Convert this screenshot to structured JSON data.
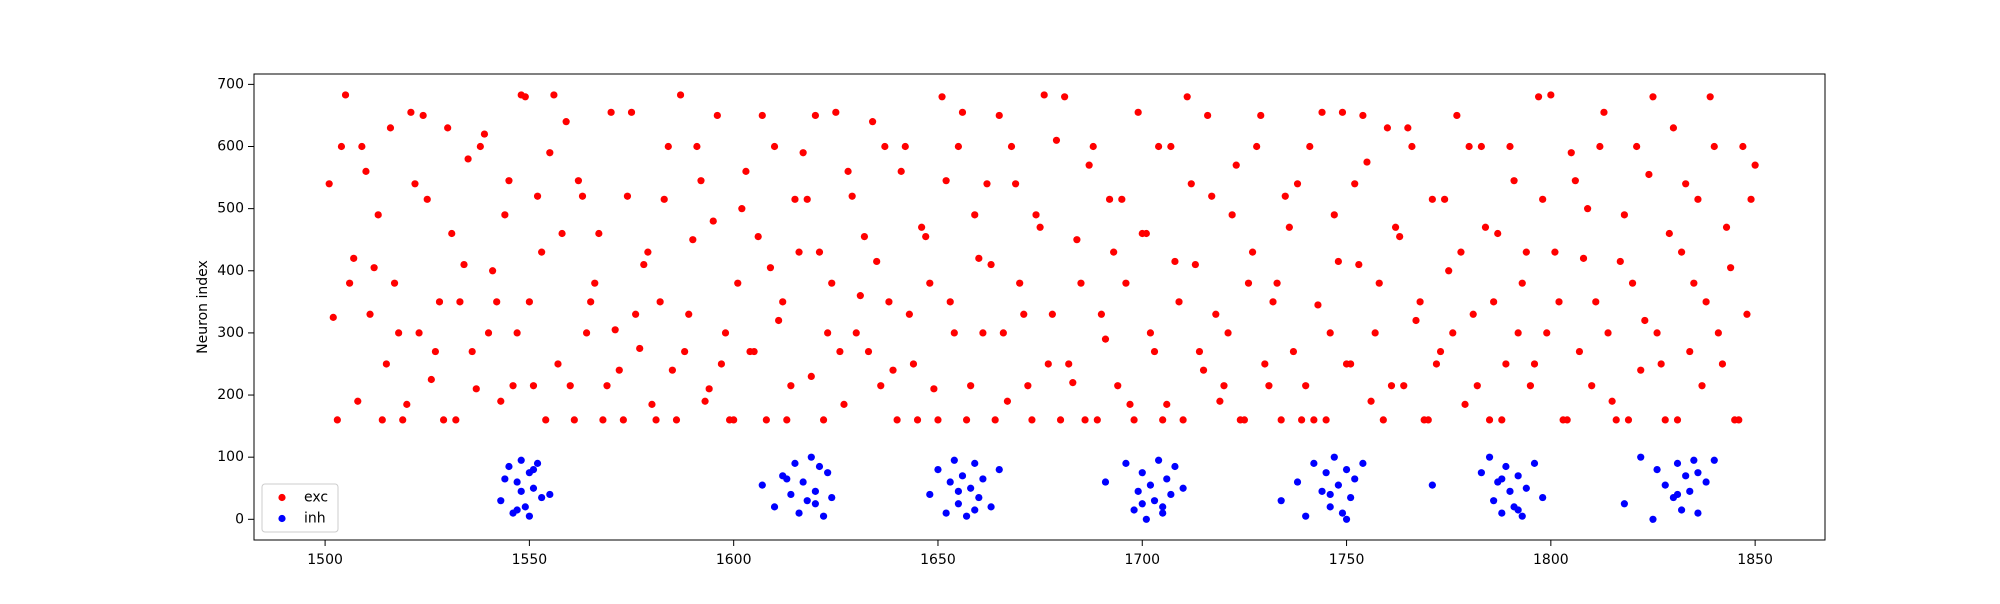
{
  "chart_data": {
    "type": "scatter",
    "ylabel": "Neuron index",
    "xlim": [
      1482.6,
      1867.1
    ],
    "ylim": [
      -33.3,
      716.7
    ],
    "xticks": [
      1500,
      1550,
      1600,
      1650,
      1700,
      1750,
      1800,
      1850
    ],
    "yticks": [
      0,
      100,
      200,
      300,
      400,
      500,
      600,
      700
    ],
    "grid": false,
    "legend_loc": "lower left",
    "series": [
      {
        "name": "exc",
        "color": "#ff0000",
        "x": [
          1501,
          1503,
          1505,
          1507,
          1509,
          1511,
          1513,
          1515,
          1517,
          1519,
          1521,
          1523,
          1525,
          1527,
          1529,
          1531,
          1533,
          1535,
          1537,
          1539,
          1541,
          1543,
          1545,
          1547,
          1549,
          1551,
          1553,
          1555,
          1557,
          1559,
          1561,
          1563,
          1565,
          1567,
          1569,
          1571,
          1573,
          1575,
          1577,
          1579,
          1581,
          1583,
          1585,
          1587,
          1589,
          1591,
          1593,
          1595,
          1597,
          1599,
          1601,
          1603,
          1605,
          1607,
          1609,
          1611,
          1613,
          1615,
          1617,
          1619,
          1621,
          1623,
          1625,
          1627,
          1629,
          1631,
          1633,
          1635,
          1637,
          1639,
          1641,
          1643,
          1645,
          1647,
          1649,
          1651,
          1653,
          1655,
          1657,
          1659,
          1661,
          1663,
          1665,
          1667,
          1669,
          1671,
          1673,
          1675,
          1677,
          1679,
          1681,
          1683,
          1685,
          1687,
          1689,
          1691,
          1693,
          1695,
          1697,
          1699,
          1701,
          1703,
          1705,
          1707,
          1709,
          1711,
          1713,
          1715,
          1717,
          1719,
          1721,
          1723,
          1725,
          1727,
          1729,
          1731,
          1733,
          1735,
          1737,
          1739,
          1741,
          1743,
          1745,
          1747,
          1749,
          1751,
          1753,
          1755,
          1757,
          1759,
          1761,
          1763,
          1765,
          1767,
          1769,
          1771,
          1773,
          1775,
          1777,
          1779,
          1781,
          1783,
          1785,
          1787,
          1789,
          1791,
          1793,
          1795,
          1797,
          1799,
          1801,
          1803,
          1805,
          1807,
          1809,
          1811,
          1813,
          1815,
          1817,
          1819,
          1821,
          1823,
          1825,
          1827,
          1829,
          1831,
          1833,
          1835,
          1837,
          1839,
          1841,
          1843,
          1845,
          1847,
          1849,
          1502,
          1504,
          1506,
          1508,
          1510,
          1512,
          1514,
          1516,
          1518,
          1520,
          1522,
          1524,
          1526,
          1528,
          1530,
          1532,
          1534,
          1536,
          1538,
          1540,
          1542,
          1544,
          1546,
          1548,
          1550,
          1552,
          1554,
          1556,
          1558,
          1560,
          1562,
          1564,
          1566,
          1568,
          1570,
          1572,
          1574,
          1576,
          1578,
          1580,
          1582,
          1584,
          1586,
          1588,
          1590,
          1592,
          1594,
          1596,
          1598,
          1600,
          1602,
          1604,
          1606,
          1608,
          1610,
          1612,
          1614,
          1616,
          1618,
          1620,
          1622,
          1624,
          1626,
          1628,
          1630,
          1632,
          1634,
          1636,
          1638,
          1640,
          1642,
          1644,
          1646,
          1648,
          1650,
          1652,
          1654,
          1656,
          1658,
          1660,
          1662,
          1664,
          1666,
          1668,
          1670,
          1672,
          1674,
          1676,
          1678,
          1680,
          1682,
          1684,
          1686,
          1688,
          1690,
          1692,
          1694,
          1696,
          1698,
          1700,
          1702,
          1704,
          1706,
          1708,
          1710,
          1712,
          1714,
          1716,
          1718,
          1720,
          1722,
          1724,
          1726,
          1728,
          1730,
          1732,
          1734,
          1736,
          1738,
          1740,
          1742,
          1744,
          1746,
          1748,
          1750,
          1752,
          1754,
          1756,
          1758,
          1760,
          1762,
          1764,
          1766,
          1768,
          1770,
          1772,
          1774,
          1776,
          1778,
          1780,
          1782,
          1784,
          1786,
          1788,
          1790,
          1792,
          1794,
          1796,
          1798,
          1800,
          1802,
          1804,
          1806,
          1808,
          1810,
          1812,
          1814,
          1816,
          1818,
          1820,
          1822,
          1824,
          1826,
          1828,
          1830,
          1832,
          1834,
          1836,
          1838,
          1840,
          1842,
          1844,
          1846,
          1848,
          1850
        ],
        "y": [
          540,
          160,
          683,
          420,
          600,
          330,
          490,
          250,
          380,
          160,
          655,
          300,
          515,
          270,
          160,
          460,
          350,
          580,
          210,
          620,
          400,
          190,
          545,
          300,
          680,
          215,
          430,
          590,
          250,
          640,
          160,
          520,
          350,
          460,
          215,
          305,
          160,
          655,
          275,
          430,
          160,
          515,
          240,
          683,
          330,
          600,
          190,
          480,
          250,
          160,
          380,
          560,
          270,
          650,
          405,
          320,
          160,
          515,
          590,
          230,
          430,
          300,
          655,
          185,
          520,
          360,
          270,
          415,
          600,
          240,
          560,
          330,
          160,
          455,
          210,
          680,
          350,
          600,
          160,
          490,
          300,
          410,
          650,
          190,
          540,
          330,
          160,
          470,
          250,
          610,
          680,
          220,
          380,
          570,
          160,
          290,
          430,
          515,
          185,
          655,
          460,
          270,
          160,
          600,
          350,
          680,
          410,
          240,
          520,
          190,
          300,
          570,
          160,
          430,
          650,
          215,
          380,
          520,
          270,
          160,
          600,
          345,
          160,
          490,
          655,
          250,
          410,
          575,
          300,
          160,
          215,
          455,
          630,
          320,
          160,
          515,
          270,
          400,
          650,
          185,
          330,
          600,
          160,
          460,
          250,
          545,
          380,
          215,
          680,
          300,
          430,
          160,
          590,
          270,
          500,
          350,
          655,
          190,
          415,
          160,
          600,
          320,
          680,
          250,
          460,
          160,
          540,
          380,
          215,
          680,
          300,
          470,
          160,
          600,
          515,
          325,
          600,
          380,
          190,
          560,
          405,
          160,
          630,
          300,
          185,
          540,
          650,
          225,
          350,
          630,
          160,
          410,
          270,
          600,
          300,
          350,
          490,
          215,
          683,
          350,
          520,
          160,
          683,
          460,
          215,
          545,
          300,
          380,
          160,
          655,
          240,
          520,
          330,
          410,
          185,
          350,
          600,
          160,
          270,
          450,
          545,
          210,
          650,
          300,
          160,
          500,
          270,
          455,
          160,
          600,
          350,
          215,
          430,
          515,
          650,
          160,
          380,
          270,
          560,
          300,
          455,
          640,
          215,
          350,
          160,
          600,
          250,
          470,
          380,
          160,
          545,
          300,
          655,
          215,
          420,
          540,
          160,
          300,
          600,
          380,
          215,
          490,
          683,
          330,
          160,
          250,
          450,
          160,
          600,
          330,
          515,
          215,
          380,
          160,
          460,
          300,
          600,
          185,
          415,
          160,
          540,
          270,
          650,
          330,
          215,
          490,
          160,
          380,
          600,
          250,
          350,
          160,
          470,
          540,
          215,
          160,
          655,
          300,
          415,
          250,
          540,
          650,
          190,
          380,
          630,
          470,
          215,
          600,
          350,
          160,
          250,
          515,
          300,
          430,
          600,
          215,
          470,
          350,
          160,
          600,
          300,
          430,
          250,
          515,
          683,
          350,
          160,
          545,
          420,
          215,
          600,
          300,
          160,
          490,
          380,
          240,
          555,
          300,
          160,
          630,
          430,
          270,
          515,
          350,
          600,
          250,
          405,
          160,
          330,
          570
        ]
      },
      {
        "name": "inh",
        "color": "#0000ff",
        "x": [
          1543,
          1545,
          1546,
          1547,
          1548,
          1548,
          1549,
          1550,
          1550,
          1551,
          1552,
          1553,
          1544,
          1547,
          1551,
          1555,
          1607,
          1610,
          1612,
          1614,
          1615,
          1616,
          1617,
          1618,
          1619,
          1620,
          1621,
          1622,
          1623,
          1624,
          1613,
          1620,
          1648,
          1650,
          1652,
          1653,
          1654,
          1655,
          1656,
          1657,
          1658,
          1659,
          1660,
          1661,
          1663,
          1665,
          1655,
          1659,
          1691,
          1696,
          1698,
          1699,
          1700,
          1701,
          1702,
          1703,
          1704,
          1705,
          1706,
          1707,
          1708,
          1710,
          1700,
          1705,
          1734,
          1738,
          1740,
          1742,
          1744,
          1745,
          1746,
          1747,
          1748,
          1749,
          1750,
          1751,
          1752,
          1754,
          1746,
          1750,
          1771,
          1783,
          1785,
          1786,
          1787,
          1788,
          1789,
          1790,
          1791,
          1792,
          1793,
          1794,
          1796,
          1798,
          1788,
          1792,
          1818,
          1822,
          1825,
          1826,
          1828,
          1830,
          1831,
          1832,
          1833,
          1834,
          1835,
          1836,
          1838,
          1840,
          1831,
          1836
        ],
        "y": [
          30,
          85,
          10,
          60,
          95,
          45,
          20,
          75,
          5,
          50,
          90,
          35,
          65,
          15,
          80,
          40,
          55,
          20,
          70,
          40,
          90,
          10,
          60,
          30,
          100,
          45,
          85,
          5,
          75,
          35,
          65,
          25,
          40,
          80,
          10,
          60,
          95,
          25,
          70,
          5,
          50,
          90,
          35,
          65,
          20,
          80,
          45,
          15,
          60,
          90,
          15,
          45,
          75,
          0,
          55,
          30,
          95,
          20,
          65,
          40,
          85,
          50,
          25,
          10,
          30,
          60,
          5,
          90,
          45,
          75,
          20,
          100,
          55,
          10,
          80,
          35,
          65,
          90,
          40,
          0,
          55,
          75,
          100,
          30,
          60,
          10,
          85,
          45,
          20,
          70,
          5,
          50,
          90,
          35,
          65,
          15,
          25,
          100,
          0,
          80,
          55,
          35,
          90,
          15,
          70,
          45,
          95,
          10,
          60,
          95,
          40,
          75
        ]
      }
    ]
  }
}
